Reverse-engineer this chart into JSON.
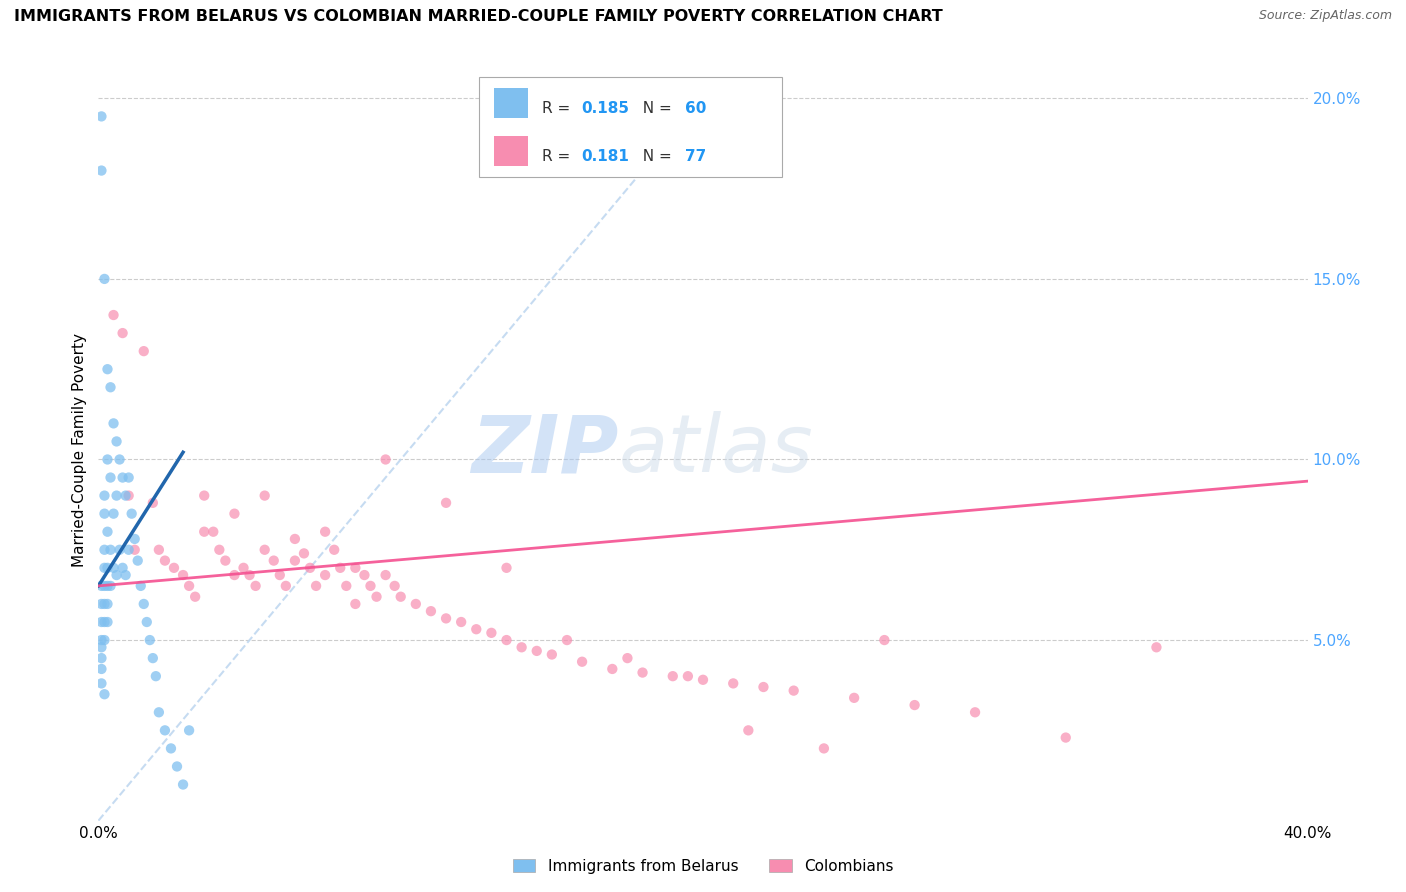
{
  "title": "IMMIGRANTS FROM BELARUS VS COLOMBIAN MARRIED-COUPLE FAMILY POVERTY CORRELATION CHART",
  "source": "Source: ZipAtlas.com",
  "ylabel": "Married-Couple Family Poverty",
  "watermark_zip": "ZIP",
  "watermark_atlas": "atlas",
  "color_belarus": "#7fbfef",
  "color_colombian": "#f78db0",
  "color_trendline_belarus": "#2166ac",
  "color_trendline_colombian": "#f45090",
  "color_diagonal": "#c0d8f0",
  "color_right_axis": "#4da6ff",
  "xmin": 0.0,
  "xmax": 0.4,
  "ymin": 0.0,
  "ymax": 0.205,
  "belarus_x": [
    0.001,
    0.001,
    0.001,
    0.001,
    0.001,
    0.001,
    0.001,
    0.001,
    0.001,
    0.001,
    0.002,
    0.002,
    0.002,
    0.002,
    0.002,
    0.002,
    0.002,
    0.002,
    0.002,
    0.002,
    0.003,
    0.003,
    0.003,
    0.003,
    0.003,
    0.003,
    0.003,
    0.004,
    0.004,
    0.004,
    0.004,
    0.005,
    0.005,
    0.005,
    0.006,
    0.006,
    0.006,
    0.007,
    0.007,
    0.008,
    0.008,
    0.009,
    0.009,
    0.01,
    0.01,
    0.011,
    0.012,
    0.013,
    0.014,
    0.015,
    0.016,
    0.017,
    0.018,
    0.019,
    0.02,
    0.022,
    0.024,
    0.026,
    0.028,
    0.03
  ],
  "belarus_y": [
    0.195,
    0.18,
    0.065,
    0.06,
    0.055,
    0.05,
    0.048,
    0.045,
    0.042,
    0.038,
    0.15,
    0.09,
    0.085,
    0.075,
    0.07,
    0.065,
    0.06,
    0.055,
    0.05,
    0.035,
    0.125,
    0.1,
    0.08,
    0.07,
    0.065,
    0.06,
    0.055,
    0.12,
    0.095,
    0.075,
    0.065,
    0.11,
    0.085,
    0.07,
    0.105,
    0.09,
    0.068,
    0.1,
    0.075,
    0.095,
    0.07,
    0.09,
    0.068,
    0.095,
    0.075,
    0.085,
    0.078,
    0.072,
    0.065,
    0.06,
    0.055,
    0.05,
    0.045,
    0.04,
    0.03,
    0.025,
    0.02,
    0.015,
    0.01,
    0.025
  ],
  "belarus_trend_x": [
    0.0,
    0.028
  ],
  "belarus_trend_y": [
    0.065,
    0.102
  ],
  "colombian_x": [
    0.005,
    0.008,
    0.01,
    0.012,
    0.015,
    0.018,
    0.02,
    0.022,
    0.025,
    0.028,
    0.03,
    0.032,
    0.035,
    0.038,
    0.04,
    0.042,
    0.045,
    0.048,
    0.05,
    0.052,
    0.055,
    0.058,
    0.06,
    0.062,
    0.065,
    0.068,
    0.07,
    0.072,
    0.075,
    0.078,
    0.08,
    0.082,
    0.085,
    0.088,
    0.09,
    0.092,
    0.095,
    0.098,
    0.1,
    0.105,
    0.11,
    0.115,
    0.12,
    0.125,
    0.13,
    0.135,
    0.14,
    0.145,
    0.15,
    0.16,
    0.17,
    0.18,
    0.19,
    0.2,
    0.21,
    0.22,
    0.23,
    0.25,
    0.27,
    0.29,
    0.035,
    0.045,
    0.055,
    0.065,
    0.075,
    0.085,
    0.095,
    0.115,
    0.135,
    0.155,
    0.175,
    0.195,
    0.215,
    0.24,
    0.26,
    0.32,
    0.35
  ],
  "colombian_y": [
    0.14,
    0.135,
    0.09,
    0.075,
    0.13,
    0.088,
    0.075,
    0.072,
    0.07,
    0.068,
    0.065,
    0.062,
    0.09,
    0.08,
    0.075,
    0.072,
    0.085,
    0.07,
    0.068,
    0.065,
    0.075,
    0.072,
    0.068,
    0.065,
    0.078,
    0.074,
    0.07,
    0.065,
    0.08,
    0.075,
    0.07,
    0.065,
    0.07,
    0.068,
    0.065,
    0.062,
    0.068,
    0.065,
    0.062,
    0.06,
    0.058,
    0.056,
    0.055,
    0.053,
    0.052,
    0.05,
    0.048,
    0.047,
    0.046,
    0.044,
    0.042,
    0.041,
    0.04,
    0.039,
    0.038,
    0.037,
    0.036,
    0.034,
    0.032,
    0.03,
    0.08,
    0.068,
    0.09,
    0.072,
    0.068,
    0.06,
    0.1,
    0.088,
    0.07,
    0.05,
    0.045,
    0.04,
    0.025,
    0.02,
    0.05,
    0.023,
    0.048
  ],
  "colombian_trend_x": [
    0.0,
    0.4
  ],
  "colombian_trend_y": [
    0.065,
    0.094
  ]
}
